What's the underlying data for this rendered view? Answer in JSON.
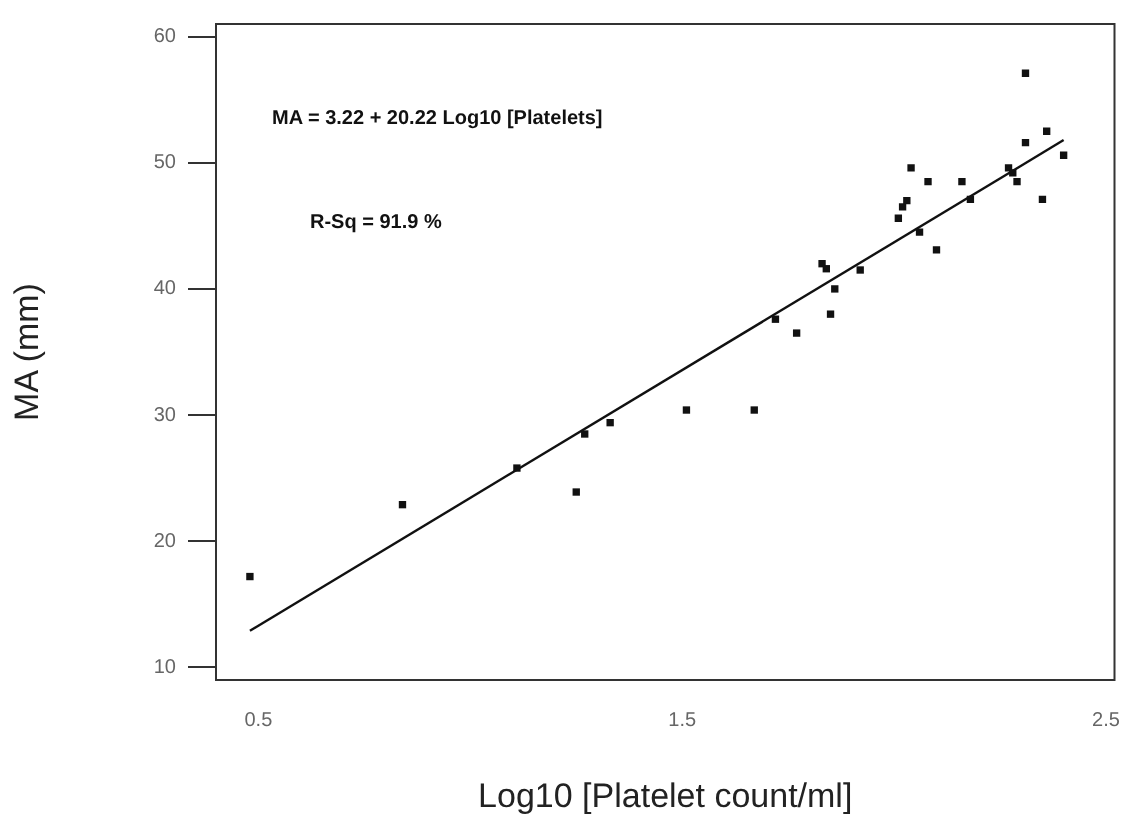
{
  "chart_data": {
    "type": "scatter",
    "xlabel": "Log10 [Platelet count/ml]",
    "ylabel": "MA (mm)",
    "annotations": [
      "MA = 3.22 + 20.22 Log10 [Platelets]",
      "R-Sq = 91.9 %"
    ],
    "xlim": [
      0.4,
      2.52
    ],
    "ylim": [
      9,
      61
    ],
    "xticks": [
      0.5,
      1.5,
      2.5
    ],
    "yticks": [
      10,
      20,
      30,
      40,
      50,
      60
    ],
    "grid": false,
    "legend": false,
    "marker": "square",
    "series": [
      {
        "type": "scatter",
        "color": "#111111",
        "x": [
          0.48,
          0.84,
          1.11,
          1.25,
          1.27,
          1.33,
          1.51,
          1.67,
          1.72,
          1.77,
          1.83,
          1.84,
          1.86,
          1.85,
          1.92,
          2.01,
          2.02,
          2.03,
          2.04,
          2.06,
          2.08,
          2.1,
          2.16,
          2.18,
          2.27,
          2.28,
          2.29,
          2.31,
          2.31,
          2.35,
          2.36,
          2.4
        ],
        "values": [
          17.2,
          22.9,
          25.8,
          23.9,
          28.5,
          29.4,
          30.4,
          30.4,
          37.6,
          36.5,
          42.0,
          41.6,
          40.0,
          38.0,
          41.5,
          45.6,
          46.5,
          47.0,
          49.6,
          44.5,
          48.5,
          43.1,
          48.5,
          47.1,
          49.6,
          49.2,
          48.5,
          57.1,
          51.6,
          47.1,
          52.5,
          50.6
        ]
      },
      {
        "type": "line",
        "color": "#111111",
        "line_style": "solid",
        "marker": "none",
        "x": [
          0.48,
          2.4
        ],
        "values": [
          12.9,
          51.8
        ]
      }
    ]
  }
}
